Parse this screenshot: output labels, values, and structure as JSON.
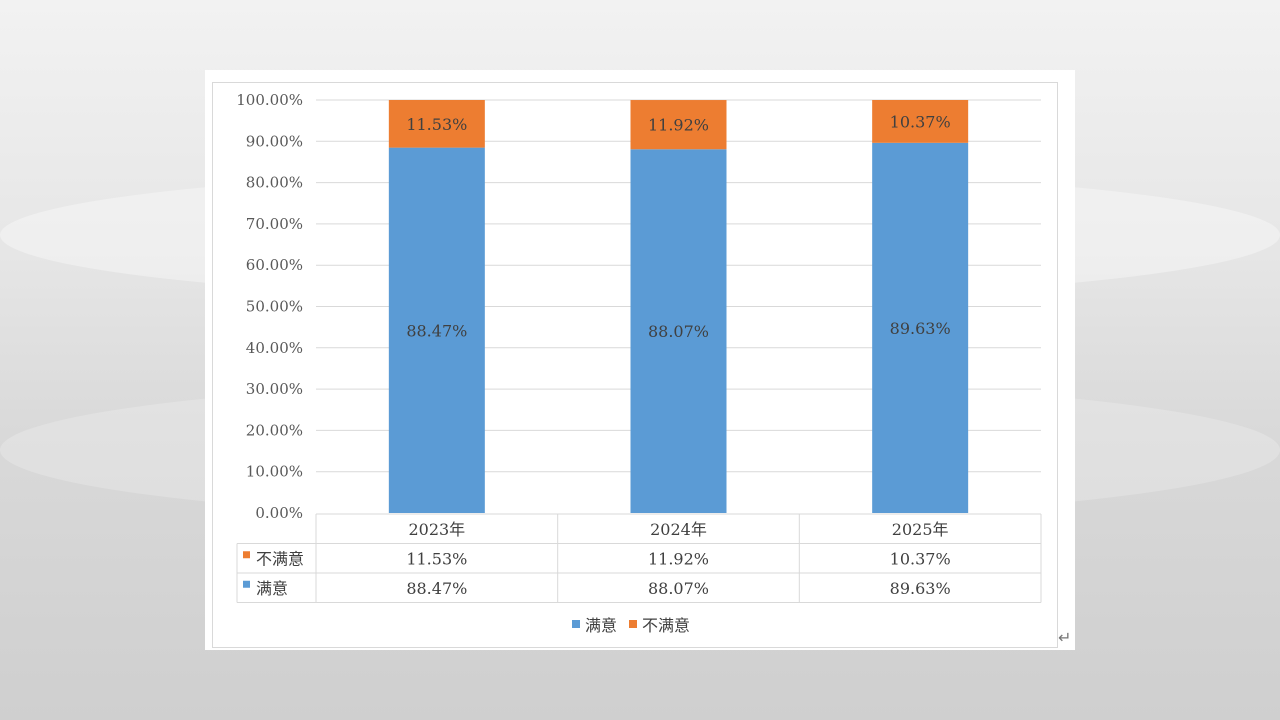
{
  "chart_data": {
    "type": "bar",
    "stacked": true,
    "categories": [
      "2023年",
      "2024年",
      "2025年"
    ],
    "series": [
      {
        "name": "满意",
        "color": "#5b9bd5",
        "values": [
          88.47,
          88.07,
          89.63
        ],
        "labels": [
          "88.47%",
          "88.07%",
          "89.63%"
        ]
      },
      {
        "name": "不满意",
        "color": "#ed7d31",
        "values": [
          11.53,
          11.92,
          10.37
        ],
        "labels": [
          "11.53%",
          "11.92%",
          "10.37%"
        ]
      }
    ],
    "y_ticks": [
      0,
      10,
      20,
      30,
      40,
      50,
      60,
      70,
      80,
      90,
      100
    ],
    "y_tick_labels": [
      "0.00%",
      "10.00%",
      "20.00%",
      "30.00%",
      "40.00%",
      "50.00%",
      "60.00%",
      "70.00%",
      "80.00%",
      "90.00%",
      "100.00%"
    ],
    "ylim": [
      0,
      100
    ],
    "grid": true,
    "legend_position": "bottom",
    "data_table": {
      "rows": [
        {
          "name": "不满意",
          "color": "#ed7d31",
          "cells": [
            "11.53%",
            "11.92%",
            "10.37%"
          ]
        },
        {
          "name": "满意",
          "color": "#5b9bd5",
          "cells": [
            "88.47%",
            "88.07%",
            "89.63%"
          ]
        }
      ]
    },
    "legend": [
      {
        "name": "满意",
        "color": "#5b9bd5"
      },
      {
        "name": "不满意",
        "color": "#ed7d31"
      }
    ]
  },
  "paragraph_mark": "↵"
}
